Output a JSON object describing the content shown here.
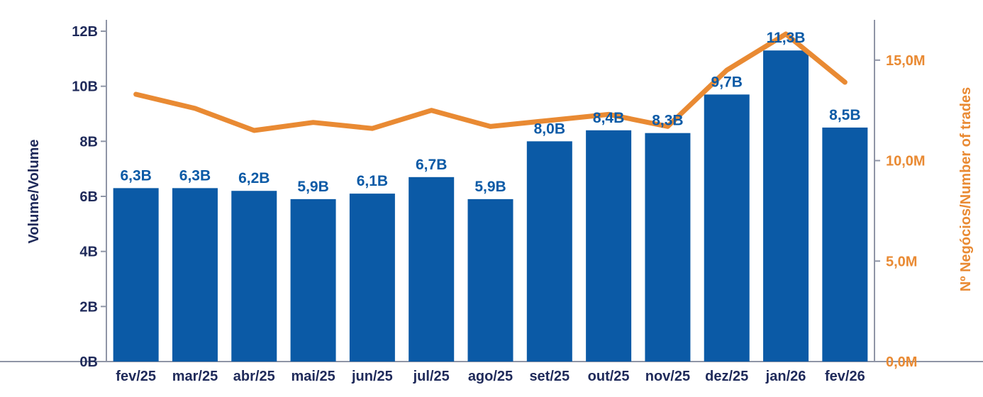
{
  "chart_data": {
    "type": "bar",
    "categories": [
      "fev/25",
      "mar/25",
      "abr/25",
      "mai/25",
      "jun/25",
      "jul/25",
      "ago/25",
      "set/25",
      "out/25",
      "nov/25",
      "dez/25",
      "jan/26",
      "fev/26"
    ],
    "series": [
      {
        "name": "Volume/Volume",
        "type": "bar",
        "axis": "left",
        "color": "#0b5aa6",
        "values": [
          6.3,
          6.3,
          6.2,
          5.9,
          6.1,
          6.7,
          5.9,
          8.0,
          8.4,
          8.3,
          9.7,
          11.3,
          8.5
        ],
        "labels": [
          "6,3B",
          "6,3B",
          "6,2B",
          "5,9B",
          "6,1B",
          "6,7B",
          "5,9B",
          "8,0B",
          "8,4B",
          "8,3B",
          "9,7B",
          "11,3B",
          "8,5B"
        ]
      },
      {
        "name": "Nº Negócios/Number of trades",
        "type": "line",
        "axis": "right",
        "color": "#e98a33",
        "values": [
          13.3,
          12.6,
          11.5,
          11.9,
          11.6,
          12.5,
          11.7,
          12.0,
          12.3,
          11.7,
          14.5,
          16.3,
          13.9
        ]
      }
    ],
    "yaxis_left": {
      "label": "Volume/Volume",
      "ylim": [
        0,
        12
      ],
      "ticks": [
        0,
        2,
        4,
        6,
        8,
        10,
        12
      ],
      "tick_labels": [
        "0B",
        "2B",
        "4B",
        "6B",
        "8B",
        "10B",
        "12B"
      ]
    },
    "yaxis_right": {
      "label": "Nº Negócios/Number of trades",
      "ylim": [
        0,
        16.44
      ],
      "ticks": [
        0,
        5,
        10,
        15
      ],
      "tick_labels": [
        "0,0M",
        "5,0M",
        "10,0M",
        "15,0M"
      ]
    },
    "grid": false,
    "legend": "none"
  }
}
